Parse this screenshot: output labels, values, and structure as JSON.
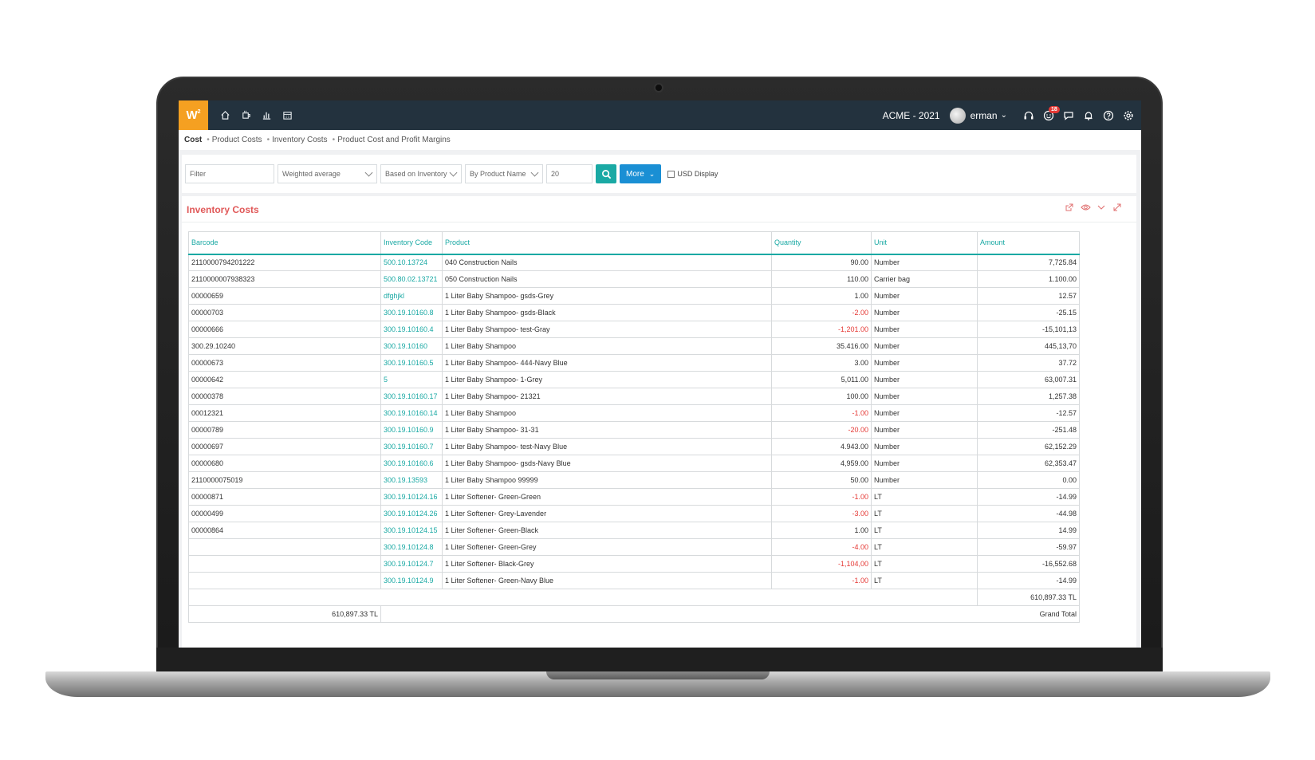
{
  "topbar": {
    "logo": "W",
    "logo_sup": "2",
    "company": "ACME - 2021",
    "user": "erman",
    "notification_count": "18"
  },
  "breadcrumb": [
    "Cost",
    "Product Costs",
    "Inventory Costs",
    "Product Cost and Profit Margins"
  ],
  "filters": {
    "filter_placeholder": "Filter",
    "method": "Weighted average",
    "basis": "Based on Inventory",
    "grouping": "By Product Name",
    "count": "20",
    "more_label": "More",
    "usd_label": "USD Display"
  },
  "panel": {
    "title": "Inventory Costs"
  },
  "table": {
    "headers": [
      "Barcode",
      "Inventory Code",
      "Product",
      "Quantity",
      "Unit",
      "Amount"
    ],
    "rows": [
      [
        "2110000794201222",
        "500.10.13724",
        "040 Construction Nails",
        "90.00",
        "Number",
        "7,725.84"
      ],
      [
        "2110000007938323",
        "500.80.02.13721",
        "050 Construction Nails",
        "110.00",
        "Carrier bag",
        "1.100.00"
      ],
      [
        "00000659",
        "dfghjkl",
        "1 Liter Baby Shampoo- gsds-Grey",
        "1.00",
        "Number",
        "12.57"
      ],
      [
        "00000703",
        "300.19.10160.8",
        "1 Liter Baby Shampoo- gsds-Black",
        "-2.00",
        "Number",
        "-25.15"
      ],
      [
        "00000666",
        "300.19.10160.4",
        "1 Liter Baby Shampoo- test-Gray",
        "-1,201.00",
        "Number",
        "-15,101,13"
      ],
      [
        "300.29.10240",
        "300.19.10160",
        "1 Liter Baby Shampoo",
        "35.416.00",
        "Number",
        "445,13,70"
      ],
      [
        "00000673",
        "300.19.10160.5",
        "1 Liter Baby Shampoo- 444-Navy Blue",
        "3.00",
        "Number",
        "37.72"
      ],
      [
        "00000642",
        "5",
        "1 Liter Baby Shampoo- 1-Grey",
        "5,011.00",
        "Number",
        "63,007.31"
      ],
      [
        "00000378",
        "300.19.10160.17",
        "1 Liter Baby Shampoo- 21321",
        "100.00",
        "Number",
        "1,257.38"
      ],
      [
        "00012321",
        "300.19.10160.14",
        "1 Liter Baby Shampoo",
        "-1.00",
        "Number",
        "-12.57"
      ],
      [
        "00000789",
        "300.19.10160.9",
        "1 Liter Baby Shampoo- 31-31",
        "-20.00",
        "Number",
        "-251.48"
      ],
      [
        "00000697",
        "300.19.10160.7",
        "1 Liter Baby Shampoo- test-Navy Blue",
        "4.943.00",
        "Number",
        "62,152.29"
      ],
      [
        "00000680",
        "300.19.10160.6",
        "1 Liter Baby Shampoo- gsds-Navy Blue",
        "4,959.00",
        "Number",
        "62,353.47"
      ],
      [
        "2110000075019",
        "300.19.13593",
        "1 Liter Baby Shampoo 99999",
        "50.00",
        "Number",
        "0.00"
      ],
      [
        "00000871",
        "300.19.10124.16",
        "1 Liter Softener- Green-Green",
        "-1.00",
        "LT",
        "-14.99"
      ],
      [
        "00000499",
        "300.19.10124.26",
        "1 Liter Softener- Grey-Lavender",
        "-3.00",
        "LT",
        "-44.98"
      ],
      [
        "00000864",
        "300.19.10124.15",
        "1 Liter Softener- Green-Black",
        "1.00",
        "LT",
        "14.99"
      ],
      [
        "",
        "300.19.10124.8",
        "1 Liter Softener- Green-Grey",
        "-4.00",
        "LT",
        "-59.97"
      ],
      [
        "",
        "300.19.10124.7",
        "1 Liter Softener- Black-Grey",
        "-1,104,00",
        "LT",
        "-16,552.68"
      ],
      [
        "",
        "300.19.10124.9",
        "1 Liter Softener- Green-Navy Blue",
        "-1.00",
        "LT",
        "-14.99"
      ]
    ],
    "total_amount": "610,897.33 TL",
    "grand_total_value": "610,897.33 TL",
    "grand_total_label": "Grand Total"
  },
  "colors": {
    "accent": "#1aa9a4",
    "title": "#e05858",
    "negative": "#e53935",
    "topbar": "#23323e",
    "logo": "#f5a021"
  }
}
